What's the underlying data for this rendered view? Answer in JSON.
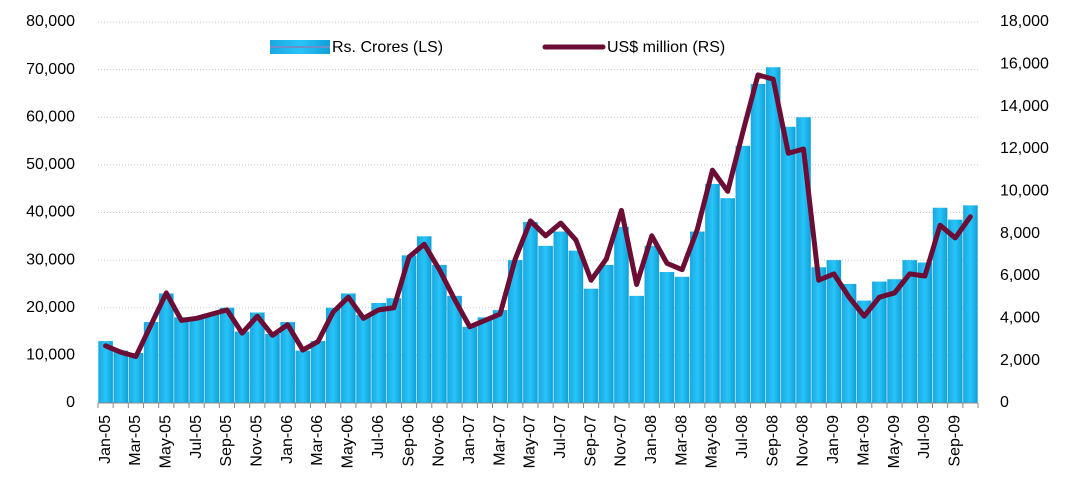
{
  "chart_data": {
    "type": "bar-line",
    "categories": [
      "Jan-05",
      null,
      "Mar-05",
      null,
      "May-05",
      null,
      "Jul-05",
      null,
      "Sep-05",
      null,
      "Nov-05",
      null,
      "Jan-06",
      null,
      "Mar-06",
      null,
      "May-06",
      null,
      "Jul-06",
      null,
      "Sep-06",
      null,
      "Nov-06",
      null,
      "Jan-07",
      null,
      "Mar-07",
      null,
      "May-07",
      null,
      "Jul-07",
      null,
      "Sep-07",
      null,
      "Nov-07",
      null,
      "Jan-08",
      null,
      "Mar-08",
      null,
      "May-08",
      null,
      "Jul-08",
      null,
      "Sep-08",
      null,
      "Nov-08",
      null,
      "Jan-09",
      null,
      "Mar-09",
      null,
      "May-09",
      null,
      "Jul-09",
      null,
      "Sep-09",
      null
    ],
    "series": [
      {
        "name": "Rs. Crores (LS)",
        "type": "bar",
        "color": "#00b0f0",
        "values": [
          13000,
          11000,
          10500,
          17000,
          23000,
          18000,
          18000,
          18500,
          20000,
          15000,
          19000,
          14500,
          17000,
          11000,
          13000,
          20000,
          23000,
          18500,
          21000,
          22000,
          31000,
          35000,
          29000,
          22500,
          16000,
          18000,
          19500,
          30000,
          38000,
          33000,
          36000,
          32000,
          24000,
          29000,
          37000,
          22500,
          33000,
          27500,
          26500,
          36000,
          46000,
          43000,
          54000,
          67000,
          70500,
          58000,
          60000,
          28500,
          30000,
          25000,
          21500,
          25500,
          26000,
          30000,
          29500,
          41000,
          38500,
          41500
        ]
      },
      {
        "name": "US$ million (RS)",
        "type": "line",
        "axis": "y2",
        "color": "#6b0d35",
        "values": [
          2700,
          2400,
          2200,
          3700,
          5200,
          3900,
          4000,
          4200,
          4400,
          3300,
          4100,
          3200,
          3700,
          2500,
          2900,
          4300,
          5000,
          4000,
          4400,
          4500,
          6900,
          7500,
          6300,
          4900,
          3600,
          3900,
          4200,
          6800,
          8600,
          7900,
          8500,
          7700,
          5800,
          6800,
          9100,
          5600,
          7900,
          6600,
          6300,
          8200,
          11000,
          10000,
          12800,
          15500,
          15300,
          11800,
          12000,
          5800,
          6100,
          5000,
          4100,
          5000,
          5200,
          6100,
          6000,
          8400,
          7800,
          8800
        ]
      }
    ],
    "ylim": [
      0,
      80000
    ],
    "yticks": [
      0,
      {
        "value": 10000,
        "label": "10,000"
      },
      {
        "value": 20000,
        "label": "20,000"
      },
      {
        "value": 30000,
        "label": "30,000"
      },
      {
        "value": 40000,
        "label": "40,000"
      },
      {
        "value": 50000,
        "label": "50,000"
      },
      {
        "value": 60000,
        "label": "60,000"
      },
      {
        "value": 70000,
        "label": "70,000"
      },
      {
        "value": 80000,
        "label": "80,000"
      }
    ],
    "y2lim": [
      0,
      18000
    ],
    "y2ticks": [
      0,
      {
        "value": 2000,
        "label": "2,000"
      },
      {
        "value": 4000,
        "label": "4,000"
      },
      {
        "value": 6000,
        "label": "6,000"
      },
      {
        "value": 8000,
        "label": "8,000"
      },
      {
        "value": 10000,
        "label": "10,000"
      },
      {
        "value": 12000,
        "label": "12,000"
      },
      {
        "value": 14000,
        "label": "14,000"
      },
      {
        "value": 16000,
        "label": "16,000"
      },
      {
        "value": 18000,
        "label": "18,000"
      }
    ],
    "grid": true,
    "legend": "top"
  }
}
